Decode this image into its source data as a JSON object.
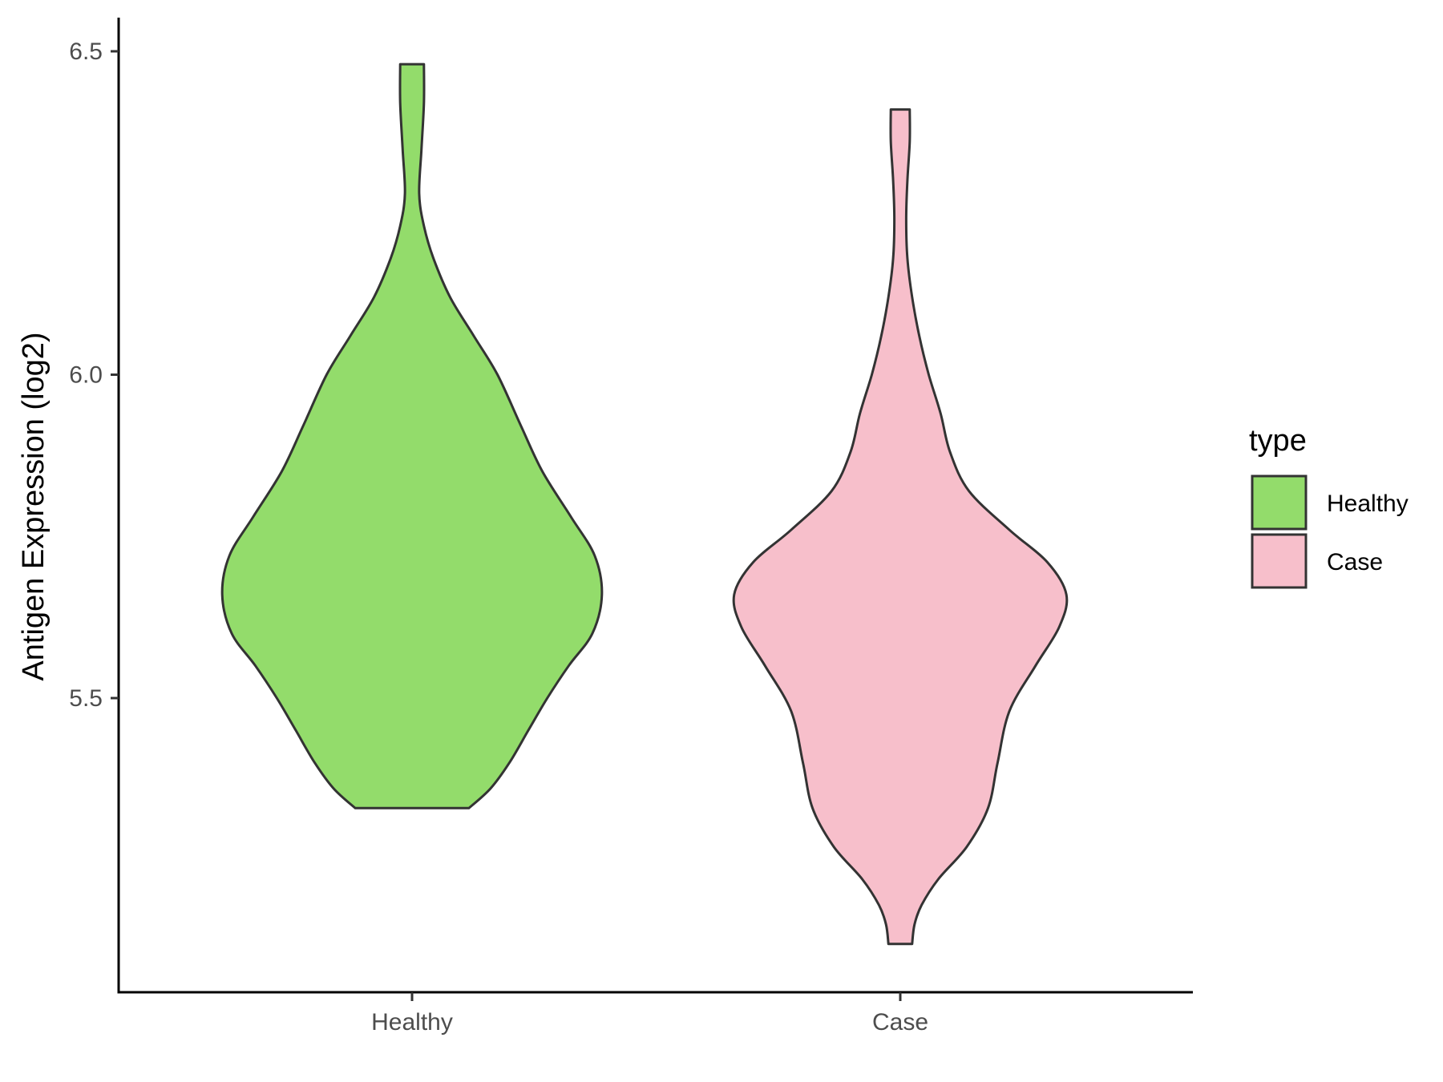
{
  "chart_data": {
    "type": "violin",
    "categories": [
      "Healthy",
      "Case"
    ],
    "ylabel": "Antigen Expression (log2)",
    "xlabel": "",
    "ylim": [
      5.08,
      6.55
    ],
    "yticks": [
      5.5,
      6.0,
      6.5
    ],
    "ytick_labels": [
      "5.5",
      "6.0",
      "6.5"
    ],
    "grid": false,
    "series": [
      {
        "name": "Healthy",
        "color": "#93DC6B",
        "min": 5.33,
        "max": 6.48,
        "density": [
          [
            5.33,
            0.24
          ],
          [
            5.36,
            0.33
          ],
          [
            5.4,
            0.41
          ],
          [
            5.45,
            0.49
          ],
          [
            5.5,
            0.57
          ],
          [
            5.55,
            0.66
          ],
          [
            5.6,
            0.76
          ],
          [
            5.66,
            0.8
          ],
          [
            5.72,
            0.77
          ],
          [
            5.78,
            0.67
          ],
          [
            5.85,
            0.55
          ],
          [
            5.92,
            0.46
          ],
          [
            6.0,
            0.36
          ],
          [
            6.06,
            0.26
          ],
          [
            6.12,
            0.16
          ],
          [
            6.18,
            0.09
          ],
          [
            6.23,
            0.05
          ],
          [
            6.28,
            0.03
          ],
          [
            6.35,
            0.04
          ],
          [
            6.42,
            0.05
          ],
          [
            6.48,
            0.05
          ]
        ]
      },
      {
        "name": "Case",
        "color": "#F7BFCB",
        "min": 5.12,
        "max": 6.41,
        "density": [
          [
            5.12,
            0.05
          ],
          [
            5.15,
            0.06
          ],
          [
            5.18,
            0.09
          ],
          [
            5.22,
            0.16
          ],
          [
            5.27,
            0.28
          ],
          [
            5.33,
            0.37
          ],
          [
            5.4,
            0.41
          ],
          [
            5.48,
            0.46
          ],
          [
            5.55,
            0.57
          ],
          [
            5.61,
            0.67
          ],
          [
            5.66,
            0.7
          ],
          [
            5.71,
            0.62
          ],
          [
            5.76,
            0.46
          ],
          [
            5.82,
            0.29
          ],
          [
            5.88,
            0.21
          ],
          [
            5.94,
            0.17
          ],
          [
            6.0,
            0.12
          ],
          [
            6.06,
            0.08
          ],
          [
            6.12,
            0.05
          ],
          [
            6.18,
            0.03
          ],
          [
            6.24,
            0.025
          ],
          [
            6.3,
            0.03
          ],
          [
            6.36,
            0.04
          ],
          [
            6.41,
            0.04
          ]
        ]
      }
    ],
    "legend": {
      "title": "type",
      "position": "right",
      "items": [
        {
          "label": "Healthy",
          "color": "#93DC6B"
        },
        {
          "label": "Case",
          "color": "#F7BFCB"
        }
      ]
    },
    "outline_color": "#333333"
  }
}
